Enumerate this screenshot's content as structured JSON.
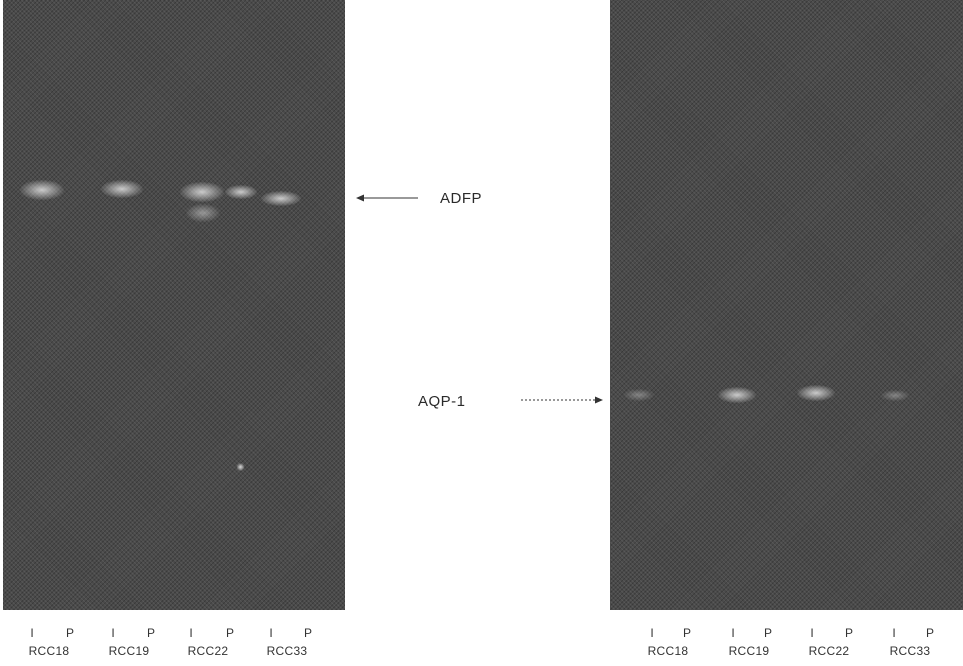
{
  "left_gel": {
    "target": "ADFP",
    "lane_marks": [
      "I",
      "P",
      "I",
      "P",
      "I",
      "P",
      "I",
      "P"
    ],
    "samples": [
      "RCC18",
      "RCC19",
      "RCC22",
      "RCC33"
    ]
  },
  "right_gel": {
    "target": "AQP-1",
    "lane_marks": [
      "I",
      "P",
      "I",
      "P",
      "I",
      "P",
      "I",
      "P"
    ],
    "samples": [
      "RCC18",
      "RCC19",
      "RCC22",
      "RCC33"
    ]
  },
  "colors": {
    "gel_background": "#4a4a4a",
    "band": "#e1e1e1",
    "text": "#2a2a2a"
  }
}
